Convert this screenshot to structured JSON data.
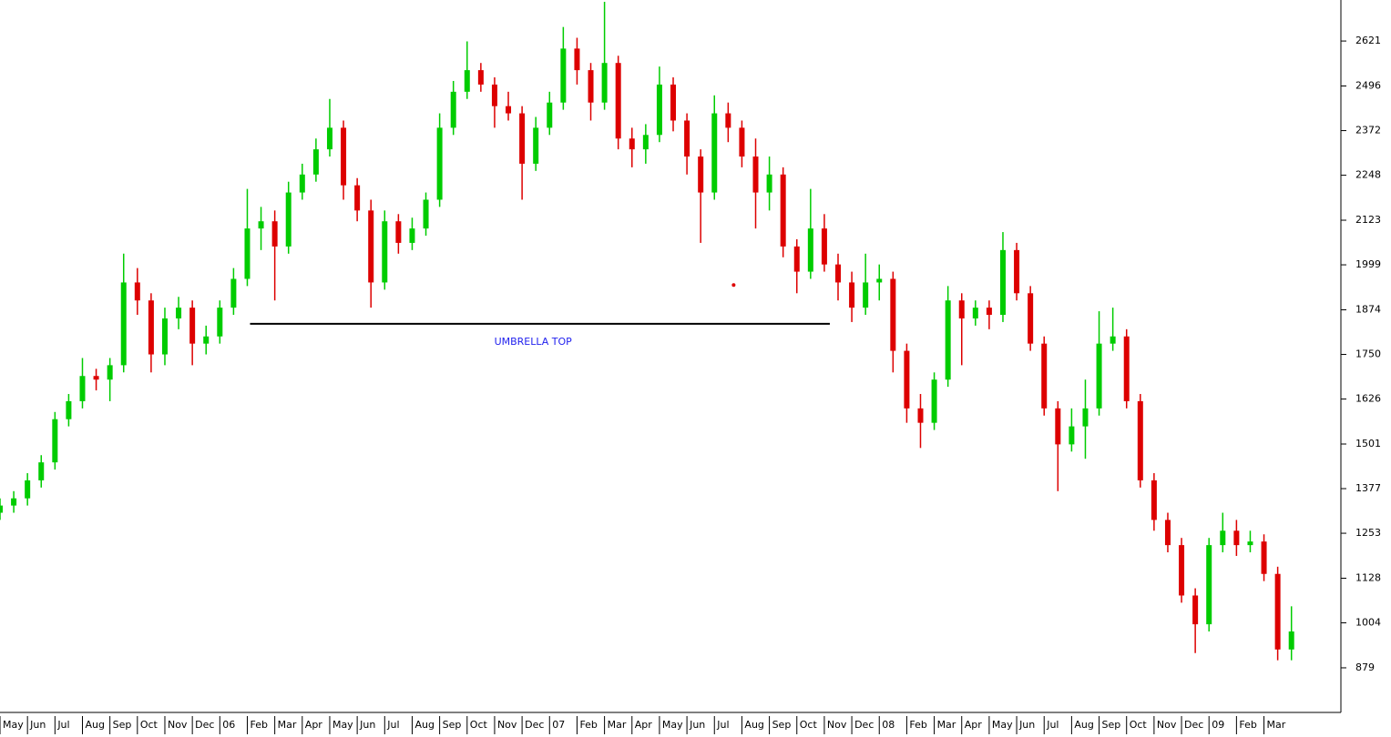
{
  "chart_data": {
    "type": "candlestick",
    "xlim": [
      0,
      48.8
    ],
    "ylim": [
      755,
      2735
    ],
    "yticks": [
      879,
      1004,
      1128,
      1253,
      1377,
      1501,
      1626,
      1750,
      1874,
      1999,
      2123,
      2248,
      2372,
      2496,
      2621
    ],
    "xticks": [
      {
        "value": 0,
        "label": "May"
      },
      {
        "value": 1,
        "label": "Jun"
      },
      {
        "value": 2,
        "label": "Jul"
      },
      {
        "value": 3,
        "label": "Aug"
      },
      {
        "value": 4,
        "label": "Sep"
      },
      {
        "value": 5,
        "label": "Oct"
      },
      {
        "value": 6,
        "label": "Nov"
      },
      {
        "value": 7,
        "label": "Dec"
      },
      {
        "value": 8,
        "label": "06"
      },
      {
        "value": 9,
        "label": "Feb"
      },
      {
        "value": 10,
        "label": "Mar"
      },
      {
        "value": 11,
        "label": "Apr"
      },
      {
        "value": 12,
        "label": "May"
      },
      {
        "value": 13,
        "label": "Jun"
      },
      {
        "value": 14,
        "label": "Jul"
      },
      {
        "value": 15,
        "label": "Aug"
      },
      {
        "value": 16,
        "label": "Sep"
      },
      {
        "value": 17,
        "label": "Oct"
      },
      {
        "value": 18,
        "label": "Nov"
      },
      {
        "value": 19,
        "label": "Dec"
      },
      {
        "value": 20,
        "label": "07"
      },
      {
        "value": 21,
        "label": "Feb"
      },
      {
        "value": 22,
        "label": "Mar"
      },
      {
        "value": 23,
        "label": "Apr"
      },
      {
        "value": 24,
        "label": "May"
      },
      {
        "value": 25,
        "label": "Jun"
      },
      {
        "value": 26,
        "label": "Jul"
      },
      {
        "value": 27,
        "label": "Aug"
      },
      {
        "value": 28,
        "label": "Sep"
      },
      {
        "value": 29,
        "label": "Oct"
      },
      {
        "value": 30,
        "label": "Nov"
      },
      {
        "value": 31,
        "label": "Dec"
      },
      {
        "value": 32,
        "label": "08"
      },
      {
        "value": 33,
        "label": "Feb"
      },
      {
        "value": 34,
        "label": "Mar"
      },
      {
        "value": 35,
        "label": "Apr"
      },
      {
        "value": 36,
        "label": "May"
      },
      {
        "value": 37,
        "label": "Jun"
      },
      {
        "value": 38,
        "label": "Jul"
      },
      {
        "value": 39,
        "label": "Aug"
      },
      {
        "value": 40,
        "label": "Sep"
      },
      {
        "value": 41,
        "label": "Oct"
      },
      {
        "value": 42,
        "label": "Nov"
      },
      {
        "value": 43,
        "label": "Dec"
      },
      {
        "value": 44,
        "label": "09"
      },
      {
        "value": 45,
        "label": "Feb"
      },
      {
        "value": 46,
        "label": "Mar"
      }
    ],
    "up_color": "#00cc00",
    "down_color": "#dd0000",
    "x": [
      0,
      0.5,
      1,
      1.5,
      2,
      2.5,
      3,
      3.5,
      4,
      4.5,
      5,
      5.5,
      6,
      6.5,
      7,
      7.5,
      8,
      8.5,
      9,
      9.5,
      10,
      10.5,
      11,
      11.5,
      12,
      12.5,
      13,
      13.5,
      14,
      14.5,
      15,
      15.5,
      16,
      16.5,
      17,
      17.5,
      18,
      18.5,
      19,
      19.5,
      20,
      20.5,
      21,
      21.5,
      22,
      22.5,
      23,
      23.5,
      24,
      24.5,
      25,
      25.5,
      26,
      26.5,
      27,
      27.5,
      28,
      28.5,
      29,
      29.5,
      30,
      30.5,
      31,
      31.5,
      32,
      32.5,
      33,
      33.5,
      34,
      34.5,
      35,
      35.5,
      36,
      36.5,
      37,
      37.5,
      38,
      38.5,
      39,
      39.5,
      40,
      40.5,
      41,
      41.5,
      42,
      42.5,
      43,
      43.5,
      44,
      44.5,
      45,
      45.5,
      46,
      46.5,
      47
    ],
    "ohlc": [
      [
        1310,
        1350,
        1290,
        1330
      ],
      [
        1330,
        1370,
        1310,
        1350
      ],
      [
        1350,
        1420,
        1330,
        1400
      ],
      [
        1400,
        1470,
        1380,
        1450
      ],
      [
        1450,
        1590,
        1430,
        1570
      ],
      [
        1570,
        1640,
        1550,
        1620
      ],
      [
        1620,
        1740,
        1600,
        1690
      ],
      [
        1690,
        1710,
        1650,
        1680
      ],
      [
        1680,
        1740,
        1620,
        1720
      ],
      [
        1720,
        2030,
        1700,
        1950
      ],
      [
        1950,
        1990,
        1860,
        1900
      ],
      [
        1900,
        1920,
        1700,
        1750
      ],
      [
        1750,
        1880,
        1720,
        1850
      ],
      [
        1850,
        1910,
        1820,
        1880
      ],
      [
        1880,
        1900,
        1720,
        1780
      ],
      [
        1780,
        1830,
        1750,
        1800
      ],
      [
        1800,
        1900,
        1780,
        1880
      ],
      [
        1880,
        1990,
        1860,
        1960
      ],
      [
        1960,
        2210,
        1940,
        2100
      ],
      [
        2100,
        2160,
        2040,
        2120
      ],
      [
        2120,
        2150,
        1900,
        2050
      ],
      [
        2050,
        2230,
        2030,
        2200
      ],
      [
        2200,
        2280,
        2180,
        2250
      ],
      [
        2250,
        2350,
        2230,
        2320
      ],
      [
        2320,
        2460,
        2300,
        2380
      ],
      [
        2380,
        2400,
        2180,
        2220
      ],
      [
        2220,
        2240,
        2120,
        2150
      ],
      [
        2150,
        2180,
        1880,
        1950
      ],
      [
        1950,
        2150,
        1930,
        2120
      ],
      [
        2120,
        2140,
        2030,
        2060
      ],
      [
        2060,
        2130,
        2040,
        2100
      ],
      [
        2100,
        2200,
        2080,
        2180
      ],
      [
        2180,
        2420,
        2160,
        2380
      ],
      [
        2380,
        2510,
        2360,
        2480
      ],
      [
        2480,
        2620,
        2460,
        2540
      ],
      [
        2540,
        2560,
        2480,
        2500
      ],
      [
        2500,
        2520,
        2380,
        2440
      ],
      [
        2440,
        2480,
        2400,
        2420
      ],
      [
        2420,
        2440,
        2180,
        2280
      ],
      [
        2280,
        2410,
        2260,
        2380
      ],
      [
        2380,
        2480,
        2360,
        2450
      ],
      [
        2450,
        2660,
        2430,
        2600
      ],
      [
        2600,
        2630,
        2500,
        2540
      ],
      [
        2540,
        2560,
        2400,
        2450
      ],
      [
        2450,
        2730,
        2430,
        2560
      ],
      [
        2560,
        2580,
        2320,
        2350
      ],
      [
        2350,
        2380,
        2270,
        2320
      ],
      [
        2320,
        2390,
        2280,
        2360
      ],
      [
        2360,
        2550,
        2340,
        2500
      ],
      [
        2500,
        2520,
        2370,
        2400
      ],
      [
        2400,
        2420,
        2250,
        2300
      ],
      [
        2300,
        2320,
        2060,
        2200
      ],
      [
        2200,
        2470,
        2180,
        2420
      ],
      [
        2420,
        2450,
        2340,
        2380
      ],
      [
        2380,
        2400,
        2270,
        2300
      ],
      [
        2300,
        2350,
        2100,
        2200
      ],
      [
        2200,
        2300,
        2150,
        2250
      ],
      [
        2250,
        2270,
        2020,
        2050
      ],
      [
        2050,
        2070,
        1920,
        1980
      ],
      [
        1980,
        2210,
        1960,
        2100
      ],
      [
        2100,
        2140,
        1980,
        2000
      ],
      [
        2000,
        2030,
        1900,
        1950
      ],
      [
        1950,
        1980,
        1840,
        1880
      ],
      [
        1880,
        2030,
        1860,
        1950
      ],
      [
        1950,
        2000,
        1900,
        1960
      ],
      [
        1960,
        1980,
        1700,
        1760
      ],
      [
        1760,
        1780,
        1560,
        1600
      ],
      [
        1600,
        1640,
        1490,
        1560
      ],
      [
        1560,
        1700,
        1540,
        1680
      ],
      [
        1680,
        1940,
        1660,
        1900
      ],
      [
        1900,
        1920,
        1720,
        1850
      ],
      [
        1850,
        1900,
        1830,
        1880
      ],
      [
        1880,
        1900,
        1820,
        1860
      ],
      [
        1860,
        2090,
        1840,
        2040
      ],
      [
        2040,
        2060,
        1900,
        1920
      ],
      [
        1920,
        1940,
        1760,
        1780
      ],
      [
        1780,
        1800,
        1580,
        1600
      ],
      [
        1600,
        1620,
        1370,
        1500
      ],
      [
        1500,
        1600,
        1480,
        1550
      ],
      [
        1550,
        1680,
        1460,
        1600
      ],
      [
        1600,
        1870,
        1580,
        1780
      ],
      [
        1780,
        1880,
        1760,
        1800
      ],
      [
        1800,
        1820,
        1600,
        1620
      ],
      [
        1620,
        1640,
        1380,
        1400
      ],
      [
        1400,
        1420,
        1260,
        1290
      ],
      [
        1290,
        1310,
        1200,
        1220
      ],
      [
        1220,
        1240,
        1060,
        1080
      ],
      [
        1080,
        1100,
        920,
        1000
      ],
      [
        1000,
        1240,
        980,
        1220
      ],
      [
        1220,
        1310,
        1200,
        1260
      ],
      [
        1260,
        1290,
        1190,
        1220
      ],
      [
        1220,
        1260,
        1200,
        1230
      ],
      [
        1230,
        1250,
        1120,
        1140
      ],
      [
        1140,
        1160,
        900,
        930
      ],
      [
        930,
        1050,
        900,
        980
      ]
    ],
    "hline": {
      "x": [
        9.1,
        30.2
      ],
      "y": 1835,
      "color": "#000000"
    },
    "annotation": {
      "text": "UMBRELLA TOP",
      "x": 19.4,
      "y": 1784,
      "color": "#2222ee"
    },
    "marker": {
      "x": 26.7,
      "y": 1943,
      "color": "#dd0000"
    }
  }
}
